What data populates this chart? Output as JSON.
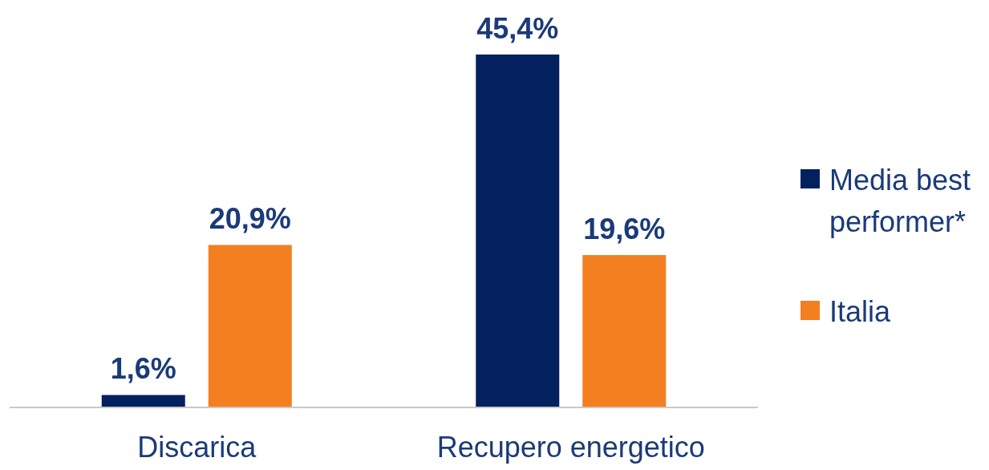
{
  "chart_data": {
    "type": "bar",
    "categories": [
      "Discarica",
      "Recupero energetico"
    ],
    "series": [
      {
        "name": "Media best performer*",
        "color": "#03205f",
        "values": [
          1.6,
          45.4
        ],
        "value_labels": [
          "1,6%",
          "45,4%"
        ]
      },
      {
        "name": "Italia",
        "color": "#f47f20",
        "values": [
          20.9,
          19.6
        ],
        "value_labels": [
          "20,9%",
          "19,6%"
        ]
      }
    ],
    "legend": "right"
  }
}
